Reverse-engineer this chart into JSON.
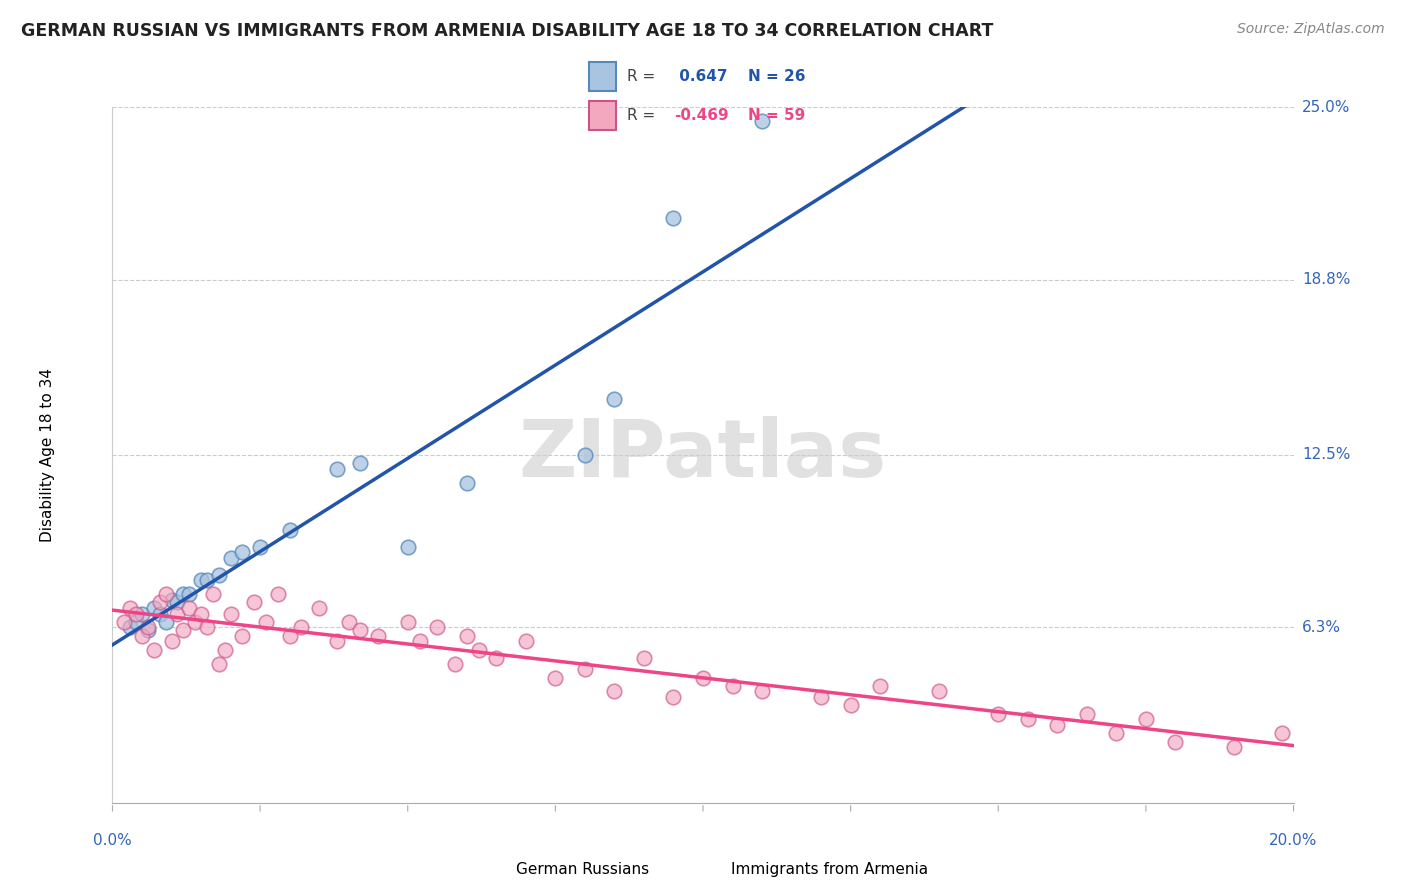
{
  "title": "GERMAN RUSSIAN VS IMMIGRANTS FROM ARMENIA DISABILITY AGE 18 TO 34 CORRELATION CHART",
  "source": "Source: ZipAtlas.com",
  "ylabel": "Disability Age 18 to 34",
  "xmin": 0.0,
  "xmax": 0.2,
  "ymin": 0.0,
  "ymax": 0.25,
  "ytick_vals": [
    0.063,
    0.125,
    0.188,
    0.25
  ],
  "ytick_labels": [
    "6.3%",
    "12.5%",
    "18.8%",
    "25.0%"
  ],
  "blue_R": 0.647,
  "blue_N": 26,
  "pink_R": -0.469,
  "pink_N": 59,
  "blue_scatter_color": "#a8c4e0",
  "blue_scatter_edge": "#5588bb",
  "pink_scatter_color": "#f4a8c0",
  "pink_scatter_edge": "#cc5588",
  "blue_line_color": "#2255aa",
  "pink_line_color": "#ee4488",
  "dash_line_color": "#aabbcc",
  "watermark_color": "#dedede",
  "title_color": "#222222",
  "source_color": "#888888",
  "right_label_color": "#3366bb",
  "bottom_label_color": "#3366bb",
  "blue_points_x": [
    0.003,
    0.004,
    0.005,
    0.006,
    0.007,
    0.008,
    0.009,
    0.01,
    0.011,
    0.012,
    0.013,
    0.015,
    0.016,
    0.018,
    0.02,
    0.022,
    0.025,
    0.03,
    0.038,
    0.042,
    0.05,
    0.06,
    0.08,
    0.085,
    0.095,
    0.11
  ],
  "blue_points_y": [
    0.063,
    0.065,
    0.068,
    0.062,
    0.07,
    0.068,
    0.065,
    0.073,
    0.072,
    0.075,
    0.075,
    0.08,
    0.08,
    0.082,
    0.088,
    0.09,
    0.092,
    0.098,
    0.12,
    0.122,
    0.092,
    0.115,
    0.125,
    0.145,
    0.21,
    0.245
  ],
  "pink_points_x": [
    0.002,
    0.003,
    0.004,
    0.005,
    0.006,
    0.007,
    0.008,
    0.009,
    0.01,
    0.011,
    0.012,
    0.013,
    0.014,
    0.015,
    0.016,
    0.017,
    0.018,
    0.019,
    0.02,
    0.022,
    0.024,
    0.026,
    0.028,
    0.03,
    0.032,
    0.035,
    0.038,
    0.04,
    0.042,
    0.045,
    0.05,
    0.052,
    0.055,
    0.058,
    0.06,
    0.062,
    0.065,
    0.07,
    0.075,
    0.08,
    0.085,
    0.09,
    0.095,
    0.1,
    0.105,
    0.11,
    0.12,
    0.125,
    0.13,
    0.14,
    0.15,
    0.155,
    0.16,
    0.165,
    0.17,
    0.175,
    0.18,
    0.19,
    0.198
  ],
  "pink_points_y": [
    0.065,
    0.07,
    0.068,
    0.06,
    0.063,
    0.055,
    0.072,
    0.075,
    0.058,
    0.068,
    0.062,
    0.07,
    0.065,
    0.068,
    0.063,
    0.075,
    0.05,
    0.055,
    0.068,
    0.06,
    0.072,
    0.065,
    0.075,
    0.06,
    0.063,
    0.07,
    0.058,
    0.065,
    0.062,
    0.06,
    0.065,
    0.058,
    0.063,
    0.05,
    0.06,
    0.055,
    0.052,
    0.058,
    0.045,
    0.048,
    0.04,
    0.052,
    0.038,
    0.045,
    0.042,
    0.04,
    0.038,
    0.035,
    0.042,
    0.04,
    0.032,
    0.03,
    0.028,
    0.032,
    0.025,
    0.03,
    0.022,
    0.02,
    0.025
  ]
}
